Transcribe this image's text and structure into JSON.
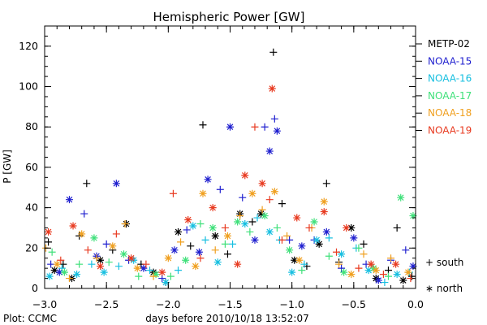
{
  "chart_data": {
    "type": "scatter",
    "title": "Hemispheric Power [GW]",
    "xlabel": "days before 2010/10/18 13:52:07",
    "ylabel": "P [GW]",
    "xlim": [
      -3.0,
      0.0
    ],
    "ylim": [
      0,
      130
    ],
    "x_ticks": [
      -3.0,
      -2.5,
      -2.0,
      -1.5,
      -1.0,
      -0.5,
      0.0
    ],
    "x_tick_labels": [
      "−3.0",
      "−2.5",
      "−2.0",
      "−1.5",
      "−1.0",
      "−0.5",
      "0.0"
    ],
    "y_ticks": [
      0,
      20,
      40,
      60,
      80,
      100,
      120
    ],
    "y_tick_labels": [
      "0",
      "20",
      "40",
      "60",
      "80",
      "100",
      "120"
    ],
    "grid": false,
    "legend_position": "right",
    "marker_legend": [
      {
        "symbol": "+",
        "label": "+ south"
      },
      {
        "symbol": "*",
        "label": "∗ north"
      }
    ],
    "footer": "Plot: CCMC",
    "series": [
      {
        "name": "METP-02",
        "color": "#000000",
        "points": [
          [
            -2.97,
            23,
            "+"
          ],
          [
            -2.92,
            9,
            "*"
          ],
          [
            -2.85,
            12,
            "+"
          ],
          [
            -2.78,
            5,
            "*"
          ],
          [
            -2.72,
            26,
            "+"
          ],
          [
            -2.66,
            52,
            "+"
          ],
          [
            -2.55,
            14,
            "*"
          ],
          [
            -2.45,
            19,
            "+"
          ],
          [
            -2.34,
            32,
            "*"
          ],
          [
            -2.22,
            12,
            "+"
          ],
          [
            -2.12,
            8,
            "*"
          ],
          [
            -2.02,
            3,
            "+"
          ],
          [
            -1.92,
            28,
            "*"
          ],
          [
            -1.82,
            21,
            "+"
          ],
          [
            -1.72,
            81,
            "+"
          ],
          [
            -1.62,
            26,
            "*"
          ],
          [
            -1.52,
            17,
            "+"
          ],
          [
            -1.42,
            37,
            "*"
          ],
          [
            -1.32,
            33,
            "+"
          ],
          [
            -1.25,
            37,
            "*"
          ],
          [
            -1.15,
            117,
            "+"
          ],
          [
            -1.08,
            42,
            "+"
          ],
          [
            -0.98,
            14,
            "*"
          ],
          [
            -0.88,
            11,
            "+"
          ],
          [
            -0.78,
            22,
            "*"
          ],
          [
            -0.72,
            52,
            "+"
          ],
          [
            -0.62,
            13,
            "+"
          ],
          [
            -0.52,
            30,
            "*"
          ],
          [
            -0.42,
            22,
            "+"
          ],
          [
            -0.32,
            5,
            "*"
          ],
          [
            -0.22,
            9,
            "+"
          ],
          [
            -0.15,
            30,
            "+"
          ],
          [
            -0.1,
            4,
            "*"
          ],
          [
            -0.03,
            6,
            "+"
          ]
        ]
      },
      {
        "name": "NOAA-15",
        "color": "#1f1fcf",
        "points": [
          [
            -2.95,
            12,
            "+"
          ],
          [
            -2.88,
            8,
            "*"
          ],
          [
            -2.8,
            44,
            "*"
          ],
          [
            -2.68,
            37,
            "+"
          ],
          [
            -2.58,
            16,
            "*"
          ],
          [
            -2.5,
            22,
            "+"
          ],
          [
            -2.42,
            52,
            "*"
          ],
          [
            -2.32,
            14,
            "+"
          ],
          [
            -2.2,
            10,
            "*"
          ],
          [
            -2.05,
            5,
            "+"
          ],
          [
            -1.95,
            19,
            "*"
          ],
          [
            -1.85,
            29,
            "+"
          ],
          [
            -1.75,
            18,
            "*"
          ],
          [
            -1.68,
            54,
            "*"
          ],
          [
            -1.58,
            49,
            "+"
          ],
          [
            -1.5,
            80,
            "*"
          ],
          [
            -1.4,
            45,
            "+"
          ],
          [
            -1.3,
            24,
            "*"
          ],
          [
            -1.22,
            80,
            "+"
          ],
          [
            -1.18,
            68,
            "*"
          ],
          [
            -1.14,
            84,
            "+"
          ],
          [
            -1.12,
            78,
            "*"
          ],
          [
            -1.02,
            24,
            "+"
          ],
          [
            -0.92,
            21,
            "*"
          ],
          [
            -0.82,
            24,
            "+"
          ],
          [
            -0.72,
            28,
            "*"
          ],
          [
            -0.6,
            10,
            "+"
          ],
          [
            -0.5,
            25,
            "*"
          ],
          [
            -0.4,
            12,
            "+"
          ],
          [
            -0.3,
            4,
            "*"
          ],
          [
            -0.2,
            14,
            "+"
          ],
          [
            -0.08,
            19,
            "+"
          ],
          [
            -0.02,
            11,
            "*"
          ]
        ]
      },
      {
        "name": "NOAA-16",
        "color": "#17bfe0",
        "points": [
          [
            -2.96,
            6,
            "*"
          ],
          [
            -2.86,
            10,
            "+"
          ],
          [
            -2.74,
            7,
            "*"
          ],
          [
            -2.62,
            12,
            "+"
          ],
          [
            -2.52,
            8,
            "*"
          ],
          [
            -2.4,
            11,
            "+"
          ],
          [
            -2.28,
            14,
            "*"
          ],
          [
            -2.15,
            9,
            "+"
          ],
          [
            -2.02,
            3,
            "*"
          ],
          [
            -1.92,
            9,
            "+"
          ],
          [
            -1.8,
            31,
            "*"
          ],
          [
            -1.7,
            24,
            "+"
          ],
          [
            -1.6,
            13,
            "*"
          ],
          [
            -1.48,
            22,
            "+"
          ],
          [
            -1.38,
            32,
            "*"
          ],
          [
            -1.28,
            35,
            "+"
          ],
          [
            -1.18,
            28,
            "*"
          ],
          [
            -1.1,
            24,
            "+"
          ],
          [
            -1.0,
            8,
            "*"
          ],
          [
            -0.9,
            12,
            "+"
          ],
          [
            -0.8,
            24,
            "*"
          ],
          [
            -0.7,
            25,
            "+"
          ],
          [
            -0.6,
            17,
            "*"
          ],
          [
            -0.48,
            20,
            "+"
          ],
          [
            -0.38,
            9,
            "*"
          ],
          [
            -0.25,
            3,
            "+"
          ],
          [
            -0.15,
            7,
            "*"
          ],
          [
            -0.05,
            8,
            "+"
          ]
        ]
      },
      {
        "name": "NOAA-17",
        "color": "#3fe07a",
        "points": [
          [
            -2.94,
            18,
            "+"
          ],
          [
            -2.84,
            8,
            "*"
          ],
          [
            -2.72,
            12,
            "+"
          ],
          [
            -2.6,
            25,
            "*"
          ],
          [
            -2.48,
            13,
            "+"
          ],
          [
            -2.36,
            17,
            "*"
          ],
          [
            -2.24,
            6,
            "+"
          ],
          [
            -2.1,
            7,
            "*"
          ],
          [
            -1.98,
            6,
            "+"
          ],
          [
            -1.86,
            14,
            "*"
          ],
          [
            -1.74,
            32,
            "+"
          ],
          [
            -1.64,
            30,
            "*"
          ],
          [
            -1.54,
            22,
            "+"
          ],
          [
            -1.44,
            33,
            "*"
          ],
          [
            -1.34,
            28,
            "+"
          ],
          [
            -1.22,
            36,
            "*"
          ],
          [
            -1.12,
            30,
            "+"
          ],
          [
            -1.02,
            19,
            "*"
          ],
          [
            -0.92,
            9,
            "+"
          ],
          [
            -0.82,
            33,
            "*"
          ],
          [
            -0.7,
            16,
            "+"
          ],
          [
            -0.58,
            8,
            "*"
          ],
          [
            -0.46,
            20,
            "+"
          ],
          [
            -0.34,
            10,
            "*"
          ],
          [
            -0.22,
            6,
            "+"
          ],
          [
            -0.12,
            45,
            "*"
          ],
          [
            -0.02,
            36,
            "*"
          ]
        ]
      },
      {
        "name": "NOAA-18",
        "color": "#f0a020",
        "points": [
          [
            -2.99,
            20,
            "+"
          ],
          [
            -2.9,
            12,
            "*"
          ],
          [
            -2.8,
            5,
            "+"
          ],
          [
            -2.7,
            27,
            "*"
          ],
          [
            -2.58,
            15,
            "+"
          ],
          [
            -2.45,
            21,
            "*"
          ],
          [
            -2.35,
            32,
            "+"
          ],
          [
            -2.25,
            10,
            "*"
          ],
          [
            -2.12,
            6,
            "+"
          ],
          [
            -2.0,
            15,
            "*"
          ],
          [
            -1.9,
            23,
            "+"
          ],
          [
            -1.78,
            11,
            "*"
          ],
          [
            -1.72,
            47,
            "*"
          ],
          [
            -1.62,
            19,
            "+"
          ],
          [
            -1.52,
            26,
            "*"
          ],
          [
            -1.42,
            36,
            "+"
          ],
          [
            -1.32,
            47,
            "*"
          ],
          [
            -1.24,
            39,
            "+"
          ],
          [
            -1.14,
            48,
            "*"
          ],
          [
            -1.04,
            26,
            "+"
          ],
          [
            -0.94,
            14,
            "*"
          ],
          [
            -0.84,
            30,
            "+"
          ],
          [
            -0.74,
            43,
            "*"
          ],
          [
            -0.62,
            12,
            "+"
          ],
          [
            -0.52,
            7,
            "*"
          ],
          [
            -0.42,
            17,
            "+"
          ],
          [
            -0.32,
            9,
            "*"
          ],
          [
            -0.2,
            15,
            "+"
          ],
          [
            -0.06,
            8,
            "*"
          ]
        ]
      },
      {
        "name": "NOAA-19",
        "color": "#e83a20",
        "points": [
          [
            -2.97,
            28,
            "*"
          ],
          [
            -2.87,
            14,
            "+"
          ],
          [
            -2.77,
            31,
            "*"
          ],
          [
            -2.65,
            19,
            "+"
          ],
          [
            -2.55,
            11,
            "*"
          ],
          [
            -2.42,
            27,
            "+"
          ],
          [
            -2.3,
            15,
            "*"
          ],
          [
            -2.18,
            12,
            "+"
          ],
          [
            -2.05,
            8,
            "*"
          ],
          [
            -1.96,
            47,
            "+"
          ],
          [
            -1.84,
            34,
            "*"
          ],
          [
            -1.74,
            15,
            "+"
          ],
          [
            -1.64,
            40,
            "*"
          ],
          [
            -1.54,
            30,
            "+"
          ],
          [
            -1.44,
            12,
            "*"
          ],
          [
            -1.38,
            56,
            "*"
          ],
          [
            -1.3,
            80,
            "+"
          ],
          [
            -1.24,
            52,
            "*"
          ],
          [
            -1.18,
            44,
            "+"
          ],
          [
            -1.16,
            99,
            "*"
          ],
          [
            -1.08,
            24,
            "+"
          ],
          [
            -0.96,
            35,
            "*"
          ],
          [
            -0.86,
            30,
            "+"
          ],
          [
            -0.74,
            38,
            "*"
          ],
          [
            -0.64,
            18,
            "+"
          ],
          [
            -0.56,
            30,
            "*"
          ],
          [
            -0.46,
            10,
            "+"
          ],
          [
            -0.36,
            12,
            "*"
          ],
          [
            -0.26,
            7,
            "+"
          ],
          [
            -0.16,
            12,
            "*"
          ],
          [
            -0.04,
            5,
            "+"
          ]
        ]
      }
    ]
  }
}
